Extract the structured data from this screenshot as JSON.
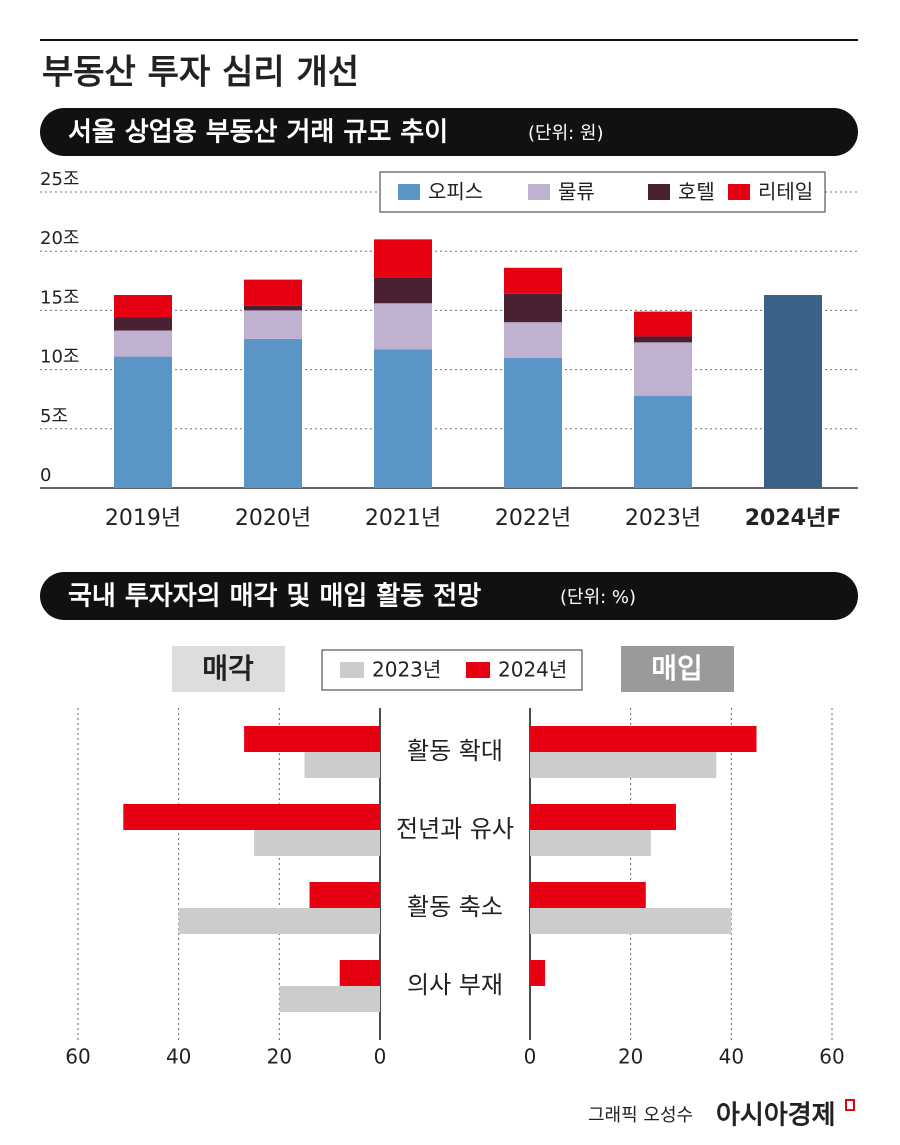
{
  "title": "부동산 투자 심리 개선",
  "chart_data": [
    {
      "type": "stacked-bar",
      "title": "서울 상업용 부동산 거래 규모 추이",
      "unit": "(단위: 원)",
      "categories": [
        "2019년",
        "2020년",
        "2021년",
        "2022년",
        "2023년",
        "2024년F"
      ],
      "highlight_category": 5,
      "series": [
        {
          "name": "오피스",
          "color": "#5b94c6",
          "values": [
            11.1,
            12.6,
            11.7,
            11.0,
            7.8,
            null
          ]
        },
        {
          "name": "물류",
          "color": "#bfb1cf",
          "values": [
            2.2,
            2.4,
            3.9,
            3.0,
            4.5,
            null
          ]
        },
        {
          "name": "호텔",
          "color": "#4a2133",
          "values": [
            1.1,
            0.4,
            2.2,
            2.4,
            0.5,
            null
          ]
        },
        {
          "name": "리테일",
          "color": "#e60012",
          "values": [
            1.9,
            2.2,
            3.2,
            2.2,
            2.1,
            null
          ]
        }
      ],
      "forecast": {
        "color": "#3a6288",
        "values": [
          null,
          null,
          null,
          null,
          null,
          16.3
        ]
      },
      "ylim": [
        0,
        25
      ],
      "yticks": [
        0,
        {
          "value": 5,
          "label": "5조"
        },
        {
          "value": 10,
          "label": "10조"
        },
        {
          "value": 15,
          "label": "15조"
        },
        {
          "value": 20,
          "label": "20조"
        },
        {
          "value": 25,
          "label": "25조"
        }
      ],
      "grid": true
    },
    {
      "type": "butterfly-bar",
      "title": "국내 투자자의 매각 및 매입 활동 전망",
      "unit": "(단위: %)",
      "categories": [
        "활동 확대",
        "전년과 유사",
        "활동 축소",
        "의사 부재"
      ],
      "legend": [
        {
          "name": "2023년",
          "color": "#cccccc"
        },
        {
          "name": "2024년",
          "color": "#e60012"
        }
      ],
      "panels": [
        {
          "label": "매각",
          "side": "left",
          "series": [
            {
              "values": [
                15,
                25,
                40,
                20
              ]
            },
            {
              "values": [
                27,
                51,
                14,
                8
              ]
            }
          ]
        },
        {
          "label": "매입",
          "side": "right",
          "series": [
            {
              "values": [
                37,
                24,
                40,
                0
              ]
            },
            {
              "values": [
                45,
                29,
                23,
                3
              ]
            }
          ]
        }
      ],
      "xlim": [
        0,
        60
      ],
      "xticks": [
        0,
        20,
        40,
        60
      ],
      "grid": true
    }
  ],
  "footer": {
    "credit": "그래픽 오성수",
    "brand": "아시아경제"
  }
}
